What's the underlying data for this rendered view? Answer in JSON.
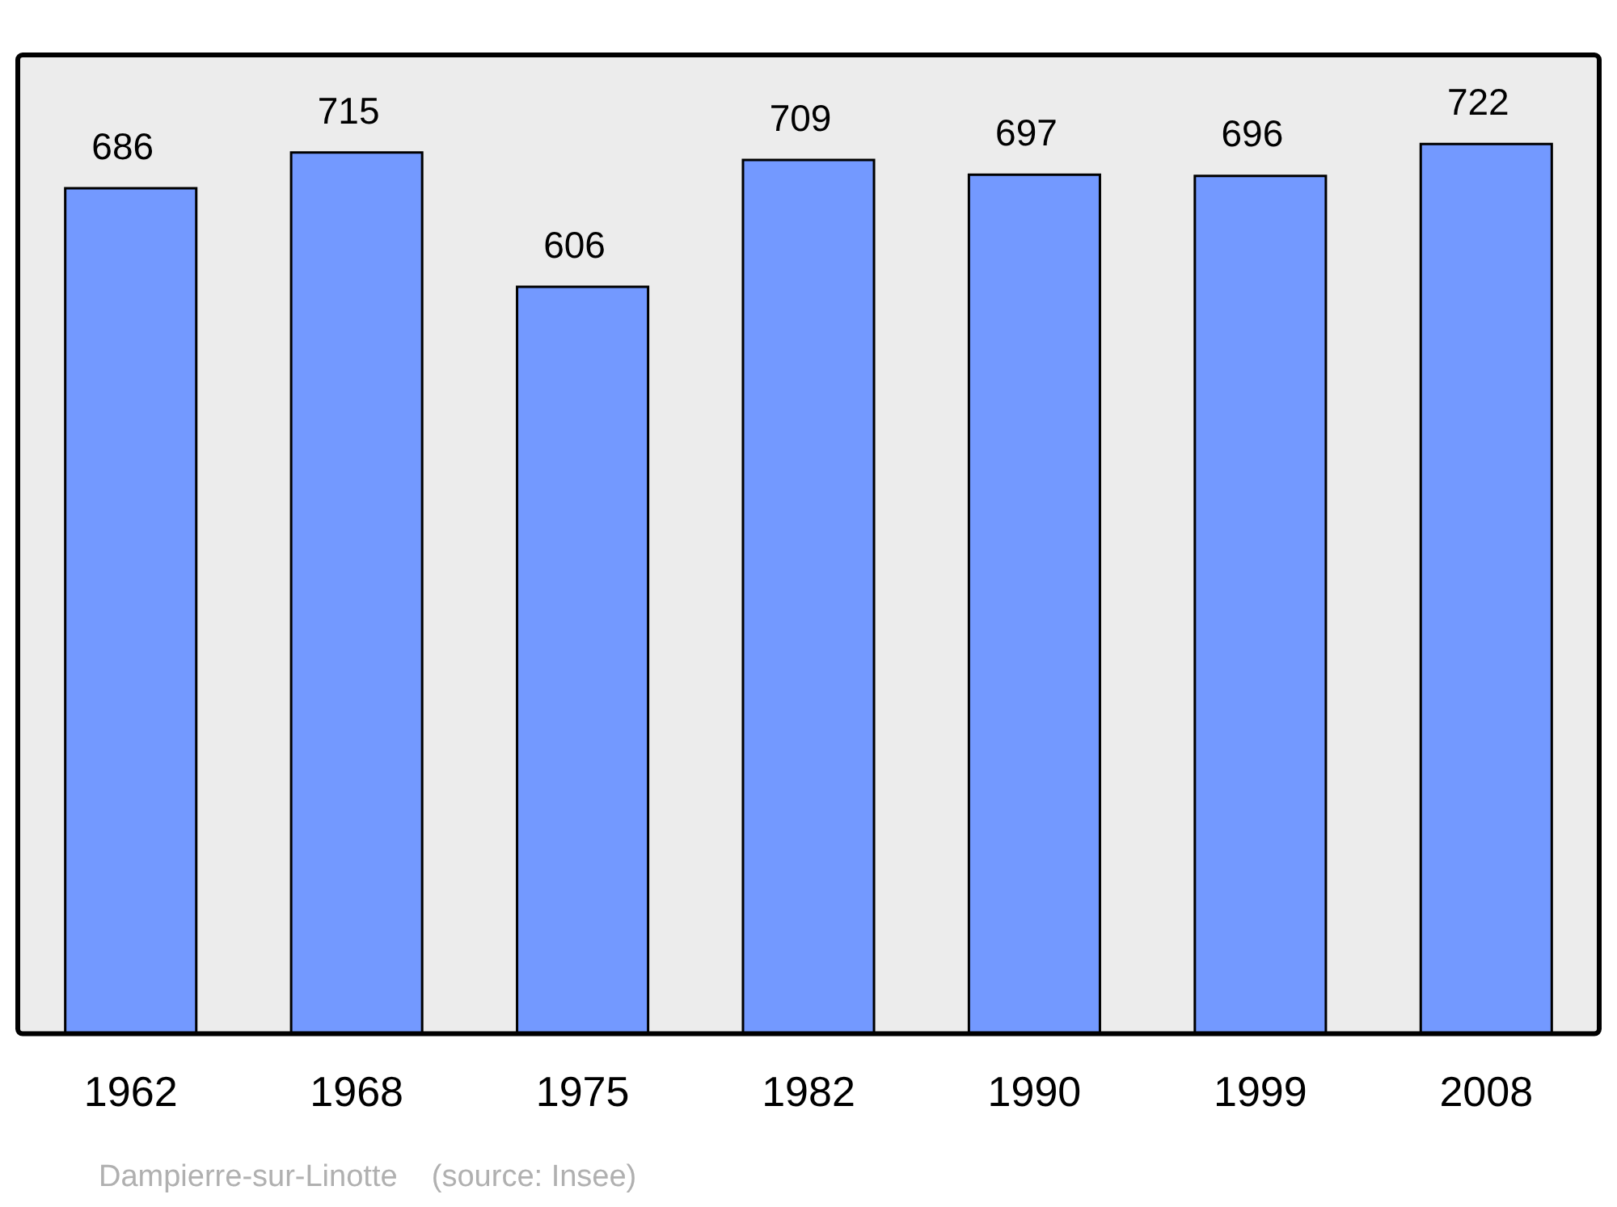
{
  "chart_data": {
    "type": "bar",
    "categories": [
      "1962",
      "1968",
      "1975",
      "1982",
      "1990",
      "1999",
      "2008"
    ],
    "values": [
      686,
      715,
      606,
      709,
      697,
      696,
      722
    ],
    "color": "#7399ff",
    "data_labels": true,
    "annotations": [
      "Dampierre-sur-Linotte    (source: Insee)"
    ]
  }
}
